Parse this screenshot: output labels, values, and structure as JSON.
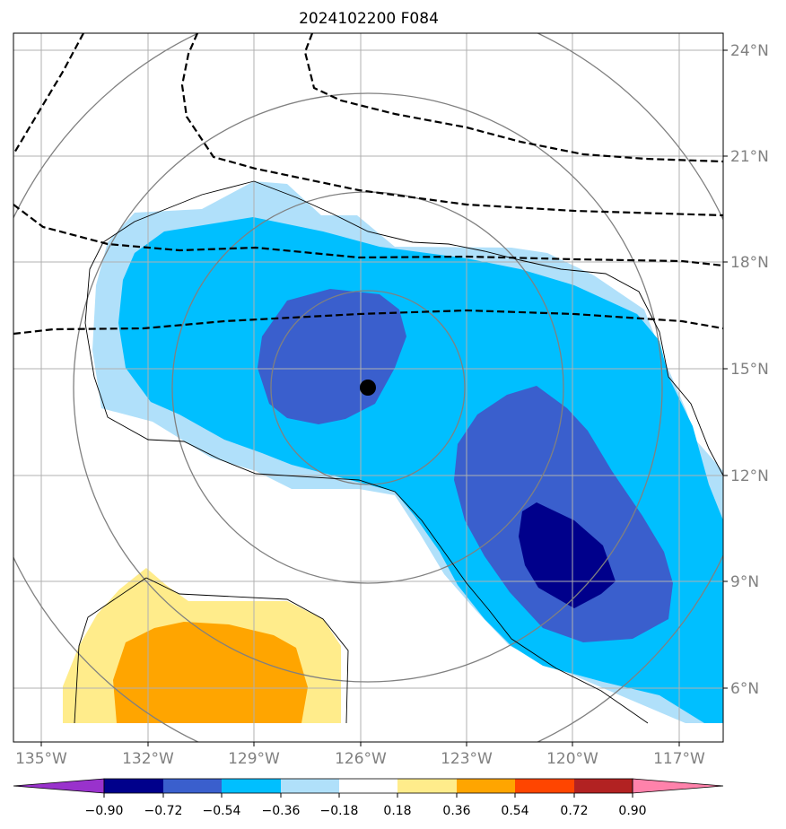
{
  "title": "2024102200 F084",
  "axes": {
    "lon_ticks": [
      {
        "value": -135,
        "label": "135°W"
      },
      {
        "value": -132,
        "label": "132°W"
      },
      {
        "value": -129,
        "label": "129°W"
      },
      {
        "value": -126,
        "label": "126°W"
      },
      {
        "value": -123,
        "label": "123°W"
      },
      {
        "value": -120,
        "label": "120°W"
      },
      {
        "value": -117,
        "label": "117°W"
      }
    ],
    "lat_ticks": [
      {
        "value": 24,
        "label": "24°N"
      },
      {
        "value": 21,
        "label": "21°N"
      },
      {
        "value": 18,
        "label": "18°N"
      },
      {
        "value": 15,
        "label": "15°N"
      },
      {
        "value": 12,
        "label": "12°N"
      },
      {
        "value": 9,
        "label": "9°N"
      },
      {
        "value": 6,
        "label": "6°N"
      }
    ],
    "lat_labels_side": "right",
    "lon_labels_side": "bottom",
    "grid": true
  },
  "storm_center": {
    "lon": -125.9,
    "lat": 14.5
  },
  "colorbar": {
    "orientation": "horizontal",
    "extend": "both",
    "tick_labels": [
      "−0.90",
      "−0.72",
      "−0.54",
      "−0.36",
      "−0.18",
      "0.18",
      "0.36",
      "0.54",
      "0.72",
      "0.90"
    ],
    "colors": [
      "#9932cc",
      "#00008b",
      "#3a5fcd",
      "#00bfff",
      "#b0e0fa",
      "#ffffff",
      "#ffec8b",
      "#ffa500",
      "#ff4500",
      "#b22222",
      "#ff82ab"
    ]
  },
  "fill_colors": {
    "light_blue": "#b0e0fa",
    "cyan": "#00bfff",
    "medium_blue": "#3a5fcd",
    "dark_blue": "#00008b",
    "light_yellow": "#ffec8b",
    "orange": "#ffa500"
  },
  "line_colors": {
    "gridline": "#b0b0b0",
    "range_rings": "#808080",
    "dashed_contours": "#000000",
    "thin_contours": "#000000"
  }
}
